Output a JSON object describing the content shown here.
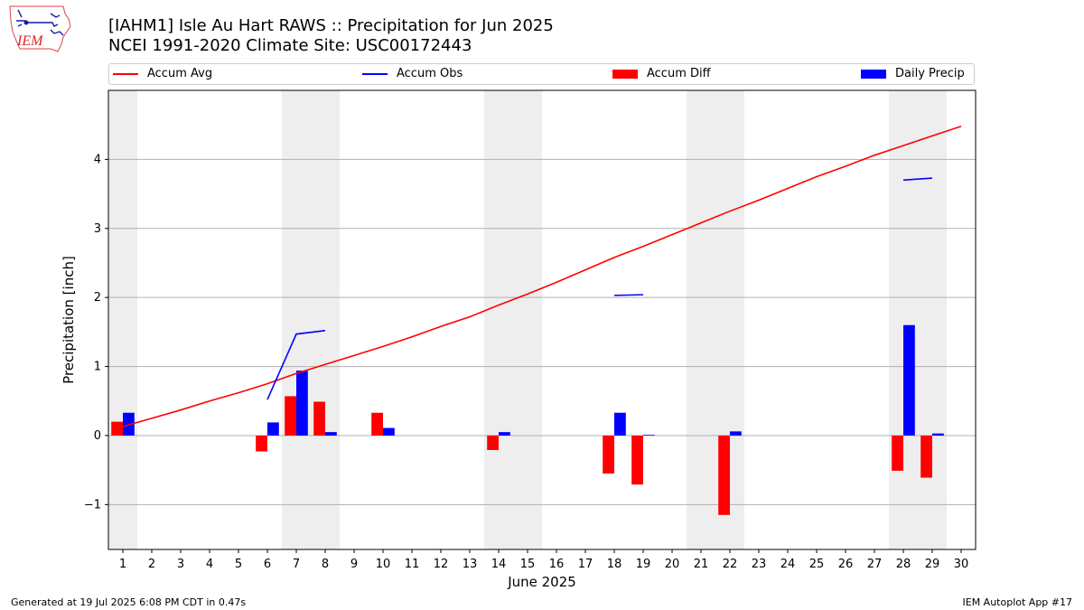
{
  "header": {
    "title_line1": "[IAHM1] Isle Au Hart RAWS :: Precipitation for Jun 2025",
    "title_line2": "NCEI 1991-2020 Climate Site: USC00172443",
    "logo_text": "IEM"
  },
  "footer": {
    "generated": "Generated at 19 Jul 2025 6:08 PM CDT in 0.47s",
    "app": "IEM Autoplot App #17"
  },
  "colors": {
    "accum_avg": "#ff0000",
    "accum_obs": "#0000ff",
    "accum_diff": "#ff0000",
    "daily_precip": "#0000ff",
    "weekend_shade": "#eeeeee",
    "grid": "#b0b0b0"
  },
  "chart_data": {
    "type": "bar",
    "xlabel": "June 2025",
    "ylabel": "Precipitation [inch]",
    "ylim": [
      -1.65,
      5.0
    ],
    "yticks": [
      -1,
      0,
      1,
      2,
      3,
      4
    ],
    "ytick_labels": [
      "−1",
      "0",
      "1",
      "2",
      "3",
      "4"
    ],
    "grid": "horizontal",
    "legend_placement": "top",
    "days": [
      1,
      2,
      3,
      4,
      5,
      6,
      7,
      8,
      9,
      10,
      11,
      12,
      13,
      14,
      15,
      16,
      17,
      18,
      19,
      20,
      21,
      22,
      23,
      24,
      25,
      26,
      27,
      28,
      29,
      30
    ],
    "weekend_days": [
      1,
      7,
      8,
      14,
      15,
      21,
      22,
      28,
      29
    ],
    "series": [
      {
        "name": "Accum Avg",
        "kind": "line",
        "values": [
          0.13,
          0.25,
          0.37,
          0.5,
          0.62,
          0.75,
          0.9,
          1.03,
          1.16,
          1.29,
          1.43,
          1.58,
          1.72,
          1.89,
          2.05,
          2.22,
          2.4,
          2.58,
          2.74,
          2.91,
          3.08,
          3.25,
          3.41,
          3.58,
          3.75,
          3.9,
          4.06,
          4.2,
          4.34,
          4.48
        ]
      },
      {
        "name": "Accum Obs",
        "kind": "line",
        "segments": [
          {
            "days": [
              6,
              7,
              8
            ],
            "values": [
              0.52,
              1.47,
              1.52
            ]
          },
          {
            "days": [
              18,
              19
            ],
            "values": [
              2.03,
              2.04
            ]
          },
          {
            "days": [
              28,
              29
            ],
            "values": [
              3.7,
              3.73
            ]
          }
        ]
      },
      {
        "name": "Accum Diff",
        "kind": "bar",
        "data": [
          {
            "day": 1,
            "value": 0.2
          },
          {
            "day": 6,
            "value": -0.23
          },
          {
            "day": 7,
            "value": 0.57
          },
          {
            "day": 8,
            "value": 0.49
          },
          {
            "day": 10,
            "value": 0.33
          },
          {
            "day": 14,
            "value": -0.21
          },
          {
            "day": 18,
            "value": -0.55
          },
          {
            "day": 19,
            "value": -0.71
          },
          {
            "day": 22,
            "value": -1.15
          },
          {
            "day": 28,
            "value": -0.51
          },
          {
            "day": 29,
            "value": -0.61
          }
        ]
      },
      {
        "name": "Daily Precip",
        "kind": "bar",
        "data": [
          {
            "day": 1,
            "value": 0.33
          },
          {
            "day": 6,
            "value": 0.19
          },
          {
            "day": 7,
            "value": 0.94
          },
          {
            "day": 8,
            "value": 0.05
          },
          {
            "day": 10,
            "value": 0.11
          },
          {
            "day": 14,
            "value": 0.05
          },
          {
            "day": 18,
            "value": 0.33
          },
          {
            "day": 19,
            "value": 0.01
          },
          {
            "day": 22,
            "value": 0.06
          },
          {
            "day": 28,
            "value": 1.6
          },
          {
            "day": 29,
            "value": 0.03
          }
        ]
      }
    ]
  }
}
